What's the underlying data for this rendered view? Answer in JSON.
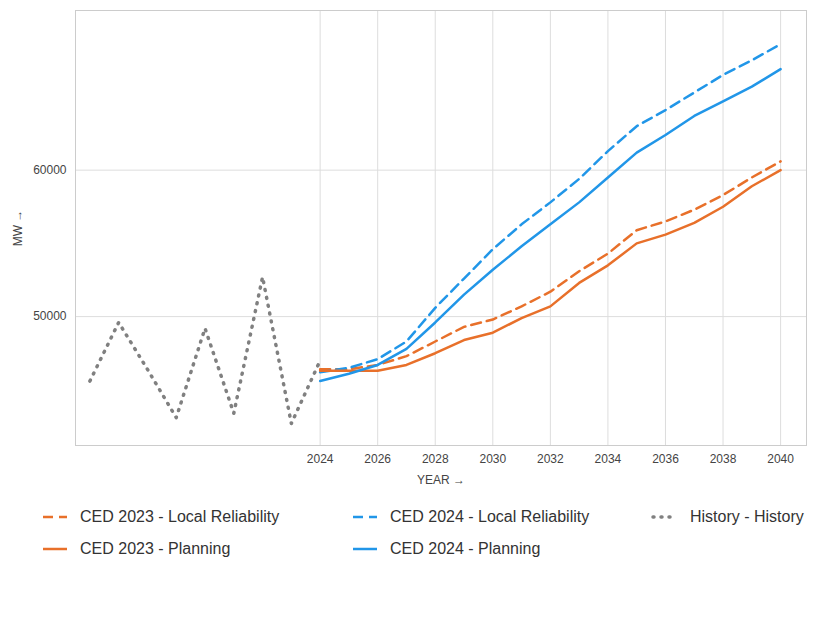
{
  "chart_data": {
    "type": "line",
    "x_label": "YEAR",
    "y_label": "MW",
    "x": [
      2016,
      2017,
      2018,
      2019,
      2020,
      2021,
      2022,
      2023,
      2024,
      2025,
      2026,
      2027,
      2028,
      2029,
      2030,
      2031,
      2032,
      2033,
      2034,
      2035,
      2036,
      2037,
      2038,
      2039,
      2040
    ],
    "xlim": [
      2015.5,
      2040.9
    ],
    "xticks": [
      2024,
      2026,
      2028,
      2030,
      2032,
      2034,
      2036,
      2038,
      2040
    ],
    "ylim": [
      41200,
      70900
    ],
    "yticks": [
      50000,
      60000
    ],
    "grid": true,
    "legend": "bottom",
    "series": [
      {
        "name": "CED 2023 - Local Reliability",
        "color": "#E8702A",
        "line_style": "dashed",
        "values": [
          null,
          null,
          null,
          null,
          null,
          null,
          null,
          null,
          46400,
          46400,
          46700,
          47300,
          48300,
          49300,
          49800,
          50700,
          51700,
          53100,
          54300,
          55900,
          56500,
          57300,
          58300,
          59500,
          60600
        ]
      },
      {
        "name": "CED 2024 - Local Reliability",
        "color": "#2196E8",
        "line_style": "dashed",
        "values": [
          null,
          null,
          null,
          null,
          null,
          null,
          null,
          null,
          46200,
          46500,
          47100,
          48300,
          50600,
          52600,
          54600,
          56300,
          57800,
          59400,
          61300,
          63000,
          64100,
          65300,
          66500,
          67500,
          68600
        ]
      },
      {
        "name": "History - History",
        "color": "#808080",
        "line_style": "dotted",
        "values": [
          45600,
          49600,
          46400,
          43100,
          49200,
          43400,
          52700,
          42700,
          47000,
          null,
          null,
          null,
          null,
          null,
          null,
          null,
          null,
          null,
          null,
          null,
          null,
          null,
          null,
          null,
          null
        ]
      },
      {
        "name": "CED 2023 - Planning",
        "color": "#E8702A",
        "line_style": "solid",
        "values": [
          null,
          null,
          null,
          null,
          null,
          null,
          null,
          null,
          46300,
          46300,
          46300,
          46700,
          47500,
          48400,
          48900,
          49900,
          50700,
          52300,
          53500,
          55000,
          55600,
          56400,
          57500,
          58900,
          60000
        ]
      },
      {
        "name": "CED 2024 - Planning",
        "color": "#2196E8",
        "line_style": "solid",
        "values": [
          null,
          null,
          null,
          null,
          null,
          null,
          null,
          null,
          45600,
          46100,
          46700,
          47800,
          49600,
          51500,
          53200,
          54800,
          56300,
          57800,
          59500,
          61200,
          62400,
          63700,
          64700,
          65700,
          66900
        ]
      }
    ]
  }
}
